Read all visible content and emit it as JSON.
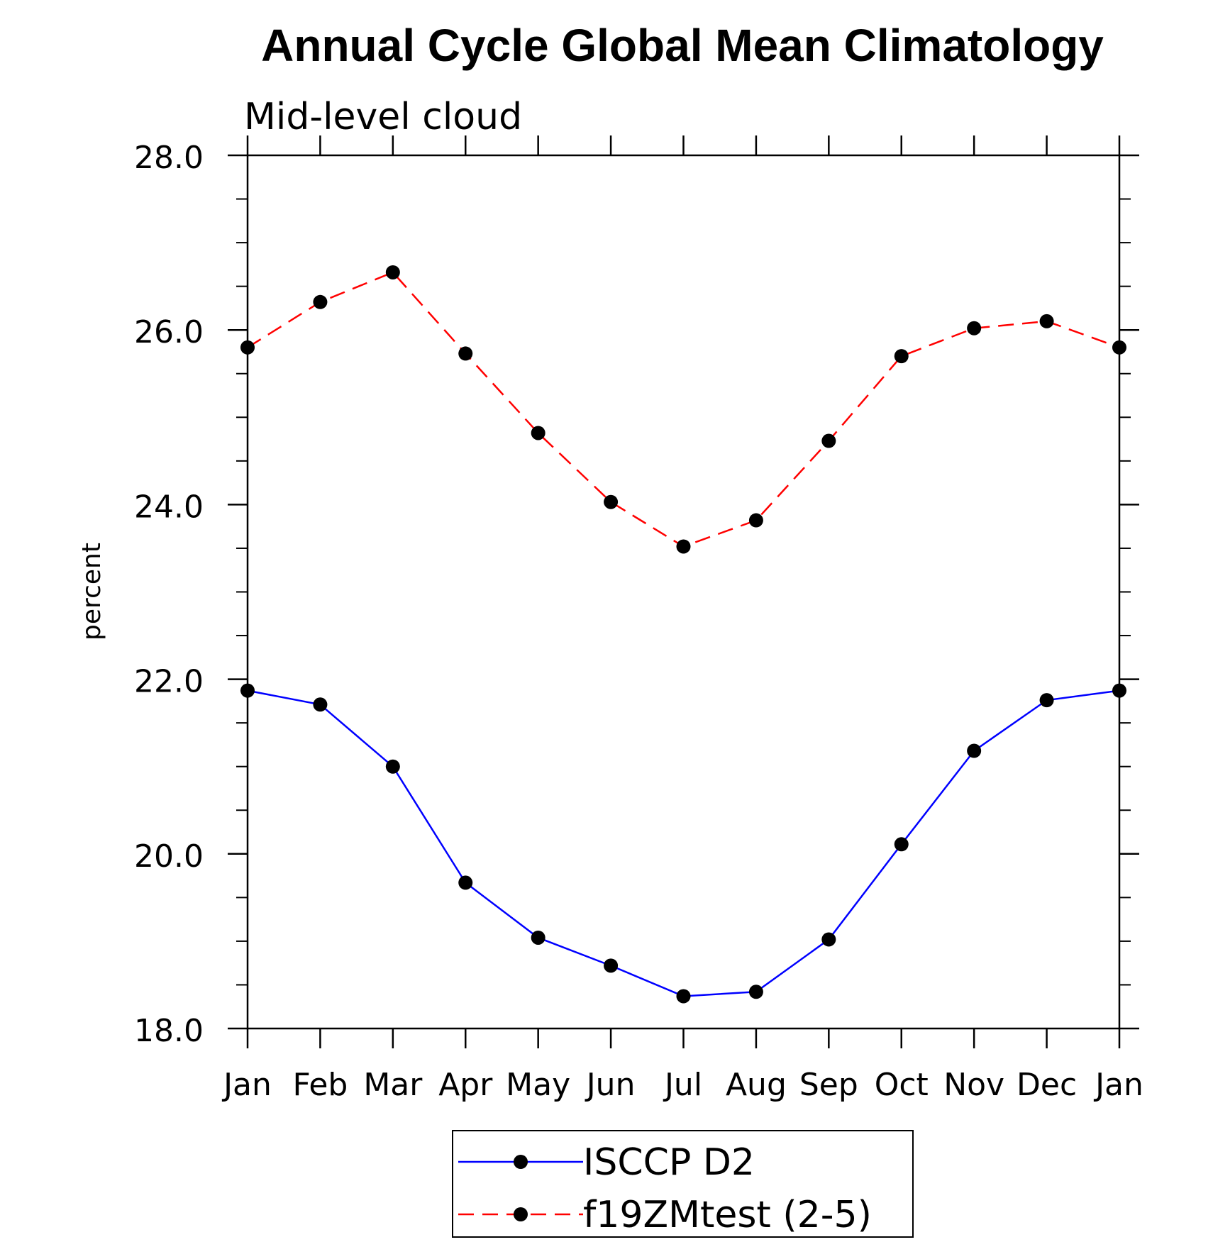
{
  "chart_data": {
    "type": "line",
    "title": "Annual Cycle Global Mean Climatology",
    "subtitle": "Mid-level cloud",
    "xlabel": "",
    "ylabel": "percent",
    "categories": [
      "Jan",
      "Feb",
      "Mar",
      "Apr",
      "May",
      "Jun",
      "Jul",
      "Aug",
      "Sep",
      "Oct",
      "Nov",
      "Dec",
      "Jan"
    ],
    "ylim": [
      18.0,
      28.0
    ],
    "yticks": [
      "18.0",
      "20.0",
      "22.0",
      "24.0",
      "26.0",
      "28.0"
    ],
    "ytick_values": [
      18,
      20,
      22,
      24,
      26,
      28
    ],
    "y_minor_step": 0.5,
    "grid": false,
    "legend_position": "bottom",
    "series": [
      {
        "name": "ISCCP D2",
        "color": "#0000ff",
        "line_style": "solid",
        "marker": "filled-circle",
        "values": [
          21.87,
          21.71,
          21.0,
          19.67,
          19.04,
          18.72,
          18.37,
          18.42,
          19.02,
          20.11,
          21.18,
          21.76,
          21.87
        ]
      },
      {
        "name": "f19ZMtest (2-5)",
        "color": "#ff0000",
        "line_style": "dashed",
        "marker": "filled-circle",
        "values": [
          25.8,
          26.32,
          26.66,
          25.73,
          24.82,
          24.03,
          23.52,
          23.82,
          24.73,
          25.7,
          26.02,
          26.1,
          25.8
        ]
      }
    ]
  }
}
